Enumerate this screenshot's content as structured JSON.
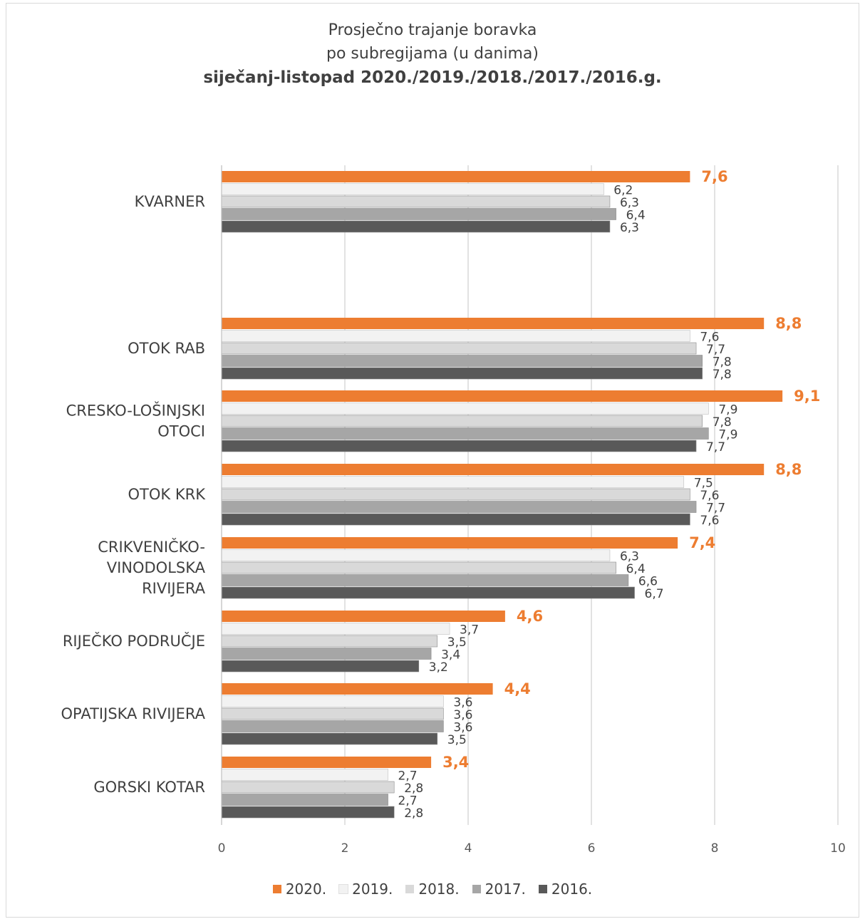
{
  "chart_data": {
    "type": "bar",
    "orientation": "horizontal",
    "title_lines": [
      "Prosječno trajanje boravka",
      "po subregijama (u danima)"
    ],
    "subtitle": "siječanj-listopad 2020./2019./2018./2017./2016.g.",
    "categories": [
      "KVARNER",
      "OTOK RAB",
      "CRESKO-LOŠINJSKI OTOCI",
      "OTOK KRK",
      "CRIKVENIČKO- VINODOLSKA RIVIJERA",
      "RIJEČKO PODRUČJE",
      "OPATIJSKA RIVIJERA",
      "GORSKI KOTAR"
    ],
    "category_lines": [
      [
        "KVARNER"
      ],
      [
        "OTOK RAB"
      ],
      [
        "CRESKO-LOŠINJSKI",
        "OTOCI"
      ],
      [
        "OTOK KRK"
      ],
      [
        "CRIKVENIČKO-",
        "VINODOLSKA",
        "RIVIJERA"
      ],
      [
        "RIJEČKO PODRUČJE"
      ],
      [
        "OPATIJSKA RIVIJERA"
      ],
      [
        "GORSKI KOTAR"
      ]
    ],
    "series": [
      {
        "name": "2020.",
        "color": "#ed7d31",
        "values": [
          7.6,
          8.8,
          9.1,
          8.8,
          7.4,
          4.6,
          4.4,
          3.4
        ],
        "labels": [
          "7,6",
          "8,8",
          "9,1",
          "8,8",
          "7,4",
          "4,6",
          "4,4",
          "3,4"
        ]
      },
      {
        "name": "2019.",
        "color": "#f2f2f2",
        "values": [
          6.2,
          7.6,
          7.9,
          7.5,
          6.3,
          3.7,
          3.6,
          2.7
        ],
        "labels": [
          "6,2",
          "7,6",
          "7,9",
          "7,5",
          "6,3",
          "3,7",
          "3,6",
          "2,7"
        ]
      },
      {
        "name": "2018.",
        "color": "#d9d9d9",
        "values": [
          6.3,
          7.7,
          7.8,
          7.6,
          6.4,
          3.5,
          3.6,
          2.8
        ],
        "labels": [
          "6,3",
          "7,7",
          "7,8",
          "7,6",
          "6,4",
          "3,5",
          "3,6",
          "2,8"
        ]
      },
      {
        "name": "2017.",
        "color": "#a6a6a6",
        "values": [
          6.4,
          7.8,
          7.9,
          7.7,
          6.6,
          3.4,
          3.6,
          2.7
        ],
        "labels": [
          "6,4",
          "7,8",
          "7,9",
          "7,7",
          "6,6",
          "3,4",
          "3,6",
          "2,7"
        ]
      },
      {
        "name": "2016.",
        "color": "#595959",
        "values": [
          6.3,
          7.8,
          7.7,
          7.6,
          6.7,
          3.2,
          3.5,
          2.8
        ],
        "labels": [
          "6,3",
          "7,8",
          "7,7",
          "7,6",
          "6,7",
          "3,2",
          "3,5",
          "2,8"
        ]
      }
    ],
    "xlim": [
      0,
      10
    ],
    "xticks": [
      0,
      2,
      4,
      6,
      8,
      10
    ],
    "xtick_labels": [
      "0",
      "2",
      "4",
      "6",
      "8",
      "10"
    ],
    "grid": true,
    "legend_position": "bottom"
  }
}
